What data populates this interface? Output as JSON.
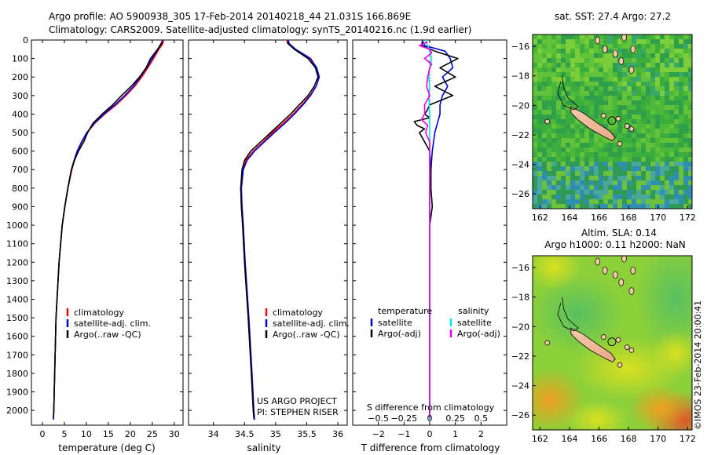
{
  "title": {
    "line1": "Argo profile: AO 5900938_305 17-Feb-2014 20140218_44 21.031S 166.869E",
    "line2": "Climatology: CARS2009. Satellite-adjusted climatology: synTS_20140216.nc (1.9d earlier)"
  },
  "colors": {
    "climatology": "#ff0000",
    "satellite": "#0000dd",
    "argo": "#000000",
    "sat_salinity": "#00e5ee",
    "argo_adj_salinity": "#ee00ee"
  },
  "chart_data": [
    {
      "id": "temperature",
      "type": "line",
      "xlabel": "temperature (deg C)",
      "ylabel": "depth",
      "xlim": [
        -2.5,
        32
      ],
      "ylim": [
        2080,
        0
      ],
      "xticks": [
        0,
        5,
        10,
        15,
        20,
        25,
        30
      ],
      "yticks": [
        0,
        100,
        200,
        300,
        400,
        500,
        600,
        700,
        800,
        900,
        1000,
        1100,
        1200,
        1300,
        1400,
        1500,
        1600,
        1700,
        1800,
        1900,
        2000
      ],
      "legend": [
        "climatology",
        "satellite-adj. clim.",
        "Argo(..raw -QC)"
      ],
      "series": [
        {
          "name": "climatology",
          "color": "#ff0000",
          "depth": [
            0,
            20,
            50,
            100,
            150,
            200,
            250,
            300,
            350,
            400,
            450,
            500,
            550,
            600,
            650,
            700,
            800,
            900,
            1000,
            1200,
            1500,
            1800,
            2000,
            2050
          ],
          "values": [
            27.6,
            27.4,
            26.5,
            25.3,
            24.0,
            22.6,
            21.0,
            19.0,
            16.8,
            14.2,
            11.9,
            10.2,
            9.0,
            8.0,
            7.3,
            6.7,
            5.8,
            5.1,
            4.5,
            3.8,
            3.1,
            2.8,
            2.6,
            2.5
          ]
        },
        {
          "name": "satellite-adj. clim.",
          "color": "#0000dd",
          "depth": [
            0,
            20,
            50,
            100,
            150,
            200,
            250,
            300,
            350,
            400,
            450,
            500,
            550,
            600,
            650,
            700,
            800,
            900,
            1000,
            1200,
            1500,
            1800,
            2000,
            2050
          ],
          "values": [
            27.3,
            27.1,
            26.3,
            25.0,
            23.7,
            22.3,
            20.7,
            18.7,
            16.5,
            14.0,
            11.8,
            10.1,
            8.9,
            7.9,
            7.2,
            6.6,
            5.8,
            5.1,
            4.5,
            3.8,
            3.1,
            2.8,
            2.6,
            2.5
          ]
        },
        {
          "name": "Argo(..raw -QC)",
          "color": "#000000",
          "depth": [
            10,
            20,
            50,
            100,
            150,
            200,
            250,
            300,
            350,
            400,
            450,
            500,
            550,
            600,
            650,
            700,
            800,
            900,
            1000,
            1200,
            1500,
            1800,
            2000,
            2040
          ],
          "values": [
            27.2,
            27.0,
            26.2,
            24.6,
            23.6,
            22.1,
            20.2,
            18.0,
            16.0,
            13.6,
            11.5,
            10.3,
            9.4,
            8.2,
            7.3,
            6.6,
            5.8,
            5.1,
            4.5,
            3.8,
            3.1,
            2.8,
            2.6,
            2.5
          ]
        }
      ]
    },
    {
      "id": "salinity",
      "type": "line",
      "xlabel": "salinity",
      "ylabel": "depth",
      "xlim": [
        33.6,
        36.15
      ],
      "ylim": [
        2080,
        0
      ],
      "xticks": [
        34,
        34.5,
        35,
        35.5,
        36
      ],
      "xticklabels": [
        "34",
        "34.5",
        "35",
        "35.5",
        "36"
      ],
      "legend": [
        "climatology",
        "satellite-adj. clim.",
        "Argo(..raw -QC)"
      ],
      "annotation": [
        "US ARGO PROJECT",
        "PI: STEPHEN RISER"
      ],
      "series": [
        {
          "name": "climatology",
          "color": "#ff0000",
          "depth": [
            0,
            20,
            50,
            100,
            150,
            200,
            250,
            300,
            350,
            400,
            450,
            500,
            550,
            600,
            650,
            700,
            800,
            900,
            1000,
            1200,
            1500,
            1800,
            2000,
            2050
          ],
          "values": [
            35.18,
            35.2,
            35.3,
            35.55,
            35.65,
            35.7,
            35.65,
            35.55,
            35.42,
            35.28,
            35.12,
            34.95,
            34.8,
            34.64,
            34.52,
            34.47,
            34.44,
            34.45,
            34.47,
            34.5,
            34.56,
            34.61,
            34.64,
            34.65
          ]
        },
        {
          "name": "satellite-adj. clim.",
          "color": "#0000dd",
          "depth": [
            0,
            20,
            50,
            100,
            150,
            200,
            250,
            300,
            350,
            400,
            450,
            500,
            550,
            600,
            650,
            700,
            800,
            900,
            1000,
            1200,
            1500,
            1800,
            2000,
            2050
          ],
          "values": [
            35.2,
            35.22,
            35.32,
            35.56,
            35.66,
            35.7,
            35.65,
            35.56,
            35.44,
            35.3,
            35.15,
            34.98,
            34.82,
            34.66,
            34.54,
            34.48,
            34.45,
            34.46,
            34.48,
            34.51,
            34.57,
            34.62,
            34.65,
            34.66
          ]
        },
        {
          "name": "Argo(..raw -QC)",
          "color": "#000000",
          "depth": [
            10,
            20,
            50,
            100,
            150,
            200,
            250,
            300,
            350,
            400,
            450,
            500,
            550,
            600,
            650,
            700,
            800,
            900,
            1000,
            1200,
            1500,
            1800,
            2000,
            2040
          ],
          "values": [
            35.18,
            35.2,
            35.3,
            35.52,
            35.64,
            35.68,
            35.62,
            35.52,
            35.38,
            35.24,
            35.08,
            34.92,
            34.76,
            34.6,
            34.5,
            34.46,
            34.44,
            34.45,
            34.47,
            34.5,
            34.56,
            34.61,
            34.64,
            34.65
          ]
        }
      ]
    },
    {
      "id": "difference",
      "type": "line",
      "xlabel": "T difference from climatology",
      "xlabel_top": "S difference from climatology",
      "xlim": [
        -3,
        3
      ],
      "ylim": [
        2080,
        0
      ],
      "xticks": [
        -2,
        -1,
        0,
        1,
        2
      ],
      "s_ticks": [
        -0.5,
        -0.25,
        0,
        0.25,
        0.5
      ],
      "s_ticklabels": [
        "−0.5",
        "−0.25",
        "0",
        "0.25",
        "0.5"
      ],
      "legend_temperature_title": "temperature",
      "legend_salinity_title": "salinity",
      "legend_temperature": [
        "satellite",
        "Argo(-adj)"
      ],
      "legend_salinity": [
        "satellite",
        "Argo(-adj)"
      ],
      "series": [
        {
          "name": "T satellite",
          "color": "#0000dd",
          "depth": [
            0,
            30,
            60,
            100,
            150,
            200,
            250,
            300,
            350,
            400,
            450,
            500,
            600,
            700,
            800,
            1000,
            1500,
            2000,
            2050
          ],
          "values": [
            -0.3,
            -0.2,
            0.6,
            0.8,
            0.9,
            0.5,
            0.7,
            0.5,
            0.4,
            0.4,
            0.3,
            0.2,
            0.1,
            0.05,
            0.0,
            0.0,
            0.0,
            0.0,
            0.0
          ]
        },
        {
          "name": "T Argo(-adj)",
          "color": "#000000",
          "depth": [
            10,
            30,
            60,
            100,
            150,
            200,
            250,
            300,
            350,
            380,
            400,
            420,
            440,
            460,
            480,
            500,
            550,
            600,
            700,
            800,
            900,
            1000,
            1500,
            2000,
            2040
          ],
          "values": [
            -0.3,
            -0.3,
            0.2,
            1.1,
            0.4,
            1.0,
            0.2,
            0.9,
            0.0,
            -0.1,
            -0.2,
            0.0,
            -0.6,
            -0.5,
            -0.2,
            -0.4,
            -0.2,
            0.0,
            0.05,
            0.05,
            0.1,
            0.0,
            0.0,
            0.0,
            0.0
          ]
        },
        {
          "name": "S satellite",
          "color": "#00e5ee",
          "depth": [
            0,
            30,
            60,
            100,
            150,
            200,
            250,
            300,
            400,
            500,
            600,
            800,
            1000,
            1500,
            2000,
            2050
          ],
          "values": [
            -0.04,
            -0.02,
            0.0,
            0.02,
            0.0,
            -0.01,
            0.0,
            -0.01,
            0.0,
            0.0,
            0.0,
            0.0,
            0.0,
            0.0,
            0.0,
            0.0
          ]
        },
        {
          "name": "S Argo(-adj)",
          "color": "#ee00ee",
          "depth": [
            10,
            30,
            50,
            70,
            100,
            130,
            150,
            200,
            250,
            300,
            350,
            400,
            430,
            460,
            500,
            550,
            600,
            700,
            800,
            1000,
            1500,
            2000,
            2040
          ],
          "values": [
            -0.02,
            -0.1,
            0.0,
            0.02,
            -0.05,
            0.02,
            0.0,
            -0.02,
            -0.03,
            0.0,
            -0.05,
            -0.05,
            -0.08,
            -0.02,
            -0.04,
            0.0,
            0.0,
            0.0,
            0.0,
            0.0,
            0.0,
            0.0,
            0.0
          ]
        }
      ]
    },
    {
      "id": "map_sst",
      "type": "heatmap",
      "title": "sat. SST: 27.4 Argo: 27.2",
      "xlim": [
        161.5,
        172.3
      ],
      "ylim": [
        -27,
        -15.2
      ],
      "xticks": [
        162,
        164,
        166,
        168,
        170,
        172
      ],
      "yticks": [
        -16,
        -18,
        -20,
        -22,
        -24,
        -26
      ]
    },
    {
      "id": "map_sla",
      "type": "heatmap",
      "title_line1": "Altim. SLA: 0.14",
      "title_line2": "Argo h1000: 0.11 h2000: NaN",
      "xlim": [
        161.5,
        172.3
      ],
      "ylim": [
        -27,
        -15.2
      ],
      "xticks": [
        162,
        164,
        166,
        168,
        170,
        172
      ],
      "yticks": [
        -16,
        -18,
        -20,
        -22,
        -24,
        -26
      ]
    }
  ],
  "watermark": "©IMOS 23-Feb-2014 20:00:41"
}
